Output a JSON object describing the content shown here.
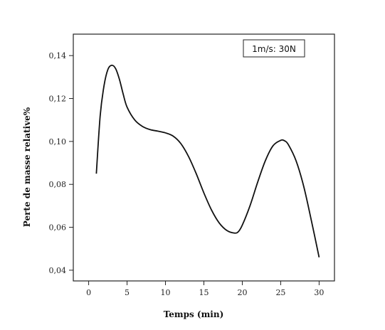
{
  "chart_data": {
    "type": "line",
    "title": "",
    "xlabel": "Temps (min)",
    "ylabel": "Perte de masse relative%",
    "xlim": [
      -2,
      32
    ],
    "ylim": [
      0.035,
      0.15
    ],
    "xticks": [
      0,
      5,
      10,
      15,
      20,
      25,
      30
    ],
    "xtick_labels": [
      "0",
      "5",
      "10",
      "15",
      "20",
      "25",
      "30"
    ],
    "yticks": [
      0.04,
      0.06,
      0.08,
      0.1,
      0.12,
      0.14
    ],
    "ytick_labels": [
      "0,04",
      "0,06",
      "0,08",
      "0,10",
      "0,12",
      "0,14"
    ],
    "grid": false,
    "legend": {
      "text": "1m/s: 30N",
      "placement": "top-right"
    },
    "series": [
      {
        "color": "#111111",
        "x": [
          1,
          1.5,
          2,
          2.5,
          3,
          3.5,
          4,
          4.5,
          5,
          6,
          7,
          8,
          9,
          10,
          11,
          12,
          13,
          14,
          15,
          16,
          17,
          18,
          19,
          19.5,
          20,
          21,
          22,
          23,
          24,
          25,
          25.5,
          26,
          27,
          28,
          29,
          30
        ],
        "y": [
          0.085,
          0.112,
          0.126,
          0.1335,
          0.1355,
          0.134,
          0.129,
          0.122,
          0.116,
          0.11,
          0.107,
          0.1055,
          0.1048,
          0.104,
          0.1025,
          0.099,
          0.093,
          0.085,
          0.076,
          0.068,
          0.062,
          0.0585,
          0.0573,
          0.058,
          0.061,
          0.07,
          0.081,
          0.091,
          0.098,
          0.1005,
          0.1003,
          0.0985,
          0.091,
          0.079,
          0.063,
          0.046
        ]
      }
    ]
  }
}
